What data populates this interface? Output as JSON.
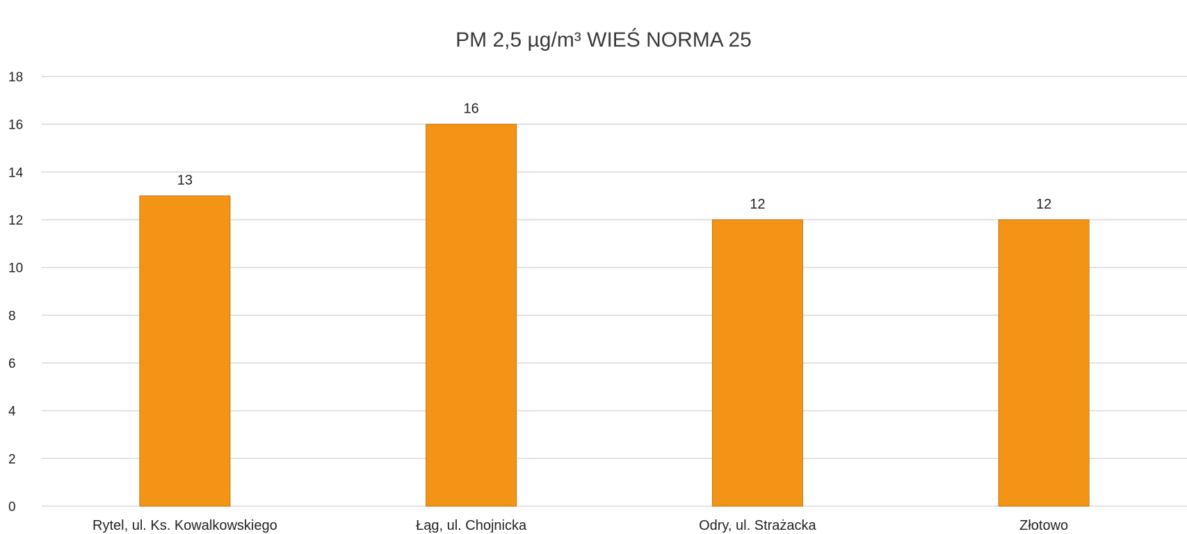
{
  "chart_data": {
    "type": "bar",
    "title": "PM 2,5 µg/m³  WIEŚ      NORMA 25",
    "categories": [
      "Rytel, ul. Ks. Kowalkowskiego",
      "Łąg, ul. Chojnicka",
      "Odry, ul. Strażacka",
      "Złotowo"
    ],
    "values": [
      13,
      16,
      12,
      12
    ],
    "data_labels": [
      "13",
      "16",
      "12",
      "12"
    ],
    "ylim": [
      0,
      18
    ],
    "yticks": [
      0,
      2,
      4,
      6,
      8,
      10,
      12,
      14,
      16,
      18
    ],
    "xlabel": "",
    "ylabel": "",
    "grid": true,
    "legend": "none",
    "bar_color": "#F39416",
    "bar_edge_color": "#C8730E",
    "grid_color": "#D9D9D9"
  }
}
